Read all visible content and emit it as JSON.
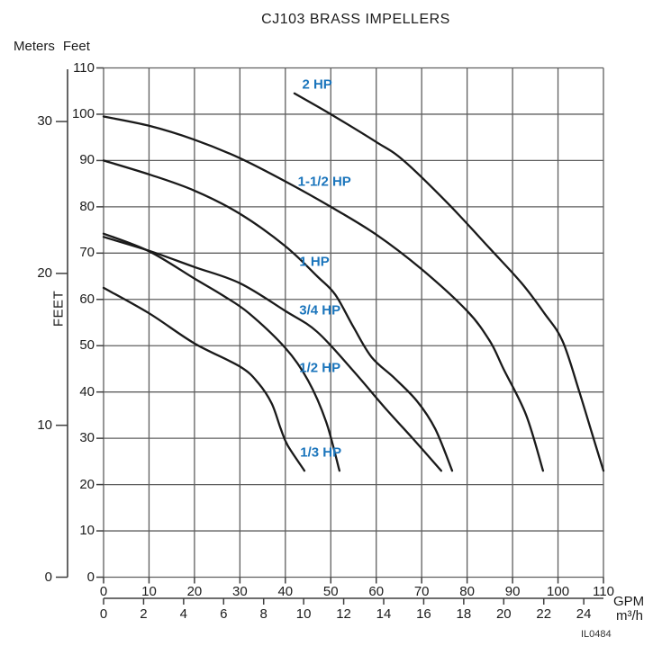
{
  "title": "CJ103 BRASS IMPELLERS",
  "figure_code": "IL0484",
  "colors": {
    "curve": "#1a1a1a",
    "grid": "#5f5f5f",
    "axis": "#3f3f3f",
    "label_blue": "#1b75bc",
    "text": "#1c1c1c"
  },
  "axes": {
    "left_header_meters": "Meters",
    "left_header_feet": "Feet",
    "feet_axis_title": "FEET",
    "feet_ticks": [
      0,
      10,
      20,
      30,
      40,
      50,
      60,
      70,
      80,
      90,
      100,
      110
    ],
    "meters_ticks": [
      0,
      10,
      20,
      30
    ],
    "gpm_ticks": [
      0,
      10,
      20,
      30,
      40,
      50,
      60,
      70,
      80,
      90,
      100,
      110
    ],
    "m3h_ticks": [
      0,
      2,
      4,
      6,
      8,
      10,
      12,
      14,
      16,
      18,
      20,
      22,
      24
    ],
    "gpm_unit": "GPM",
    "m3h_unit": "m³/h"
  },
  "chart_data": {
    "type": "line",
    "title": "CJ103 BRASS IMPELLERS",
    "xlabel": "GPM",
    "x2label": "m³/h",
    "ylabel": "FEET",
    "y2label": "Meters",
    "xlim": [
      0,
      110
    ],
    "ylim": [
      0,
      110
    ],
    "x2lim_m3h": [
      0,
      25
    ],
    "grid": true,
    "legend_position": "inline-labels",
    "series": [
      {
        "name": "2 HP",
        "label": {
          "x": 47,
          "y": 106.4
        },
        "points": [
          [
            42,
            104.5
          ],
          [
            50,
            100
          ],
          [
            60,
            94
          ],
          [
            66,
            90
          ],
          [
            76,
            80.5
          ],
          [
            85,
            71
          ],
          [
            92,
            63.5
          ],
          [
            97,
            57
          ],
          [
            101,
            51
          ],
          [
            104.7,
            40
          ],
          [
            107.5,
            31
          ],
          [
            110,
            23
          ]
        ]
      },
      {
        "name": "1-1/2 HP",
        "label": {
          "x": 48.6,
          "y": 85.4
        },
        "points": [
          [
            0,
            99.5
          ],
          [
            10,
            97.5
          ],
          [
            20,
            94.5
          ],
          [
            30,
            90.5
          ],
          [
            40,
            85.5
          ],
          [
            50,
            80
          ],
          [
            60,
            74
          ],
          [
            70,
            66.5
          ],
          [
            80,
            57.5
          ],
          [
            85,
            51
          ],
          [
            88,
            45
          ],
          [
            93,
            35
          ],
          [
            96.7,
            23
          ]
        ]
      },
      {
        "name": "1 HP",
        "label": {
          "x": 46.4,
          "y": 68.2
        },
        "points": [
          [
            0,
            90
          ],
          [
            10,
            87
          ],
          [
            20,
            83.5
          ],
          [
            30,
            78.5
          ],
          [
            40,
            71.5
          ],
          [
            47,
            65
          ],
          [
            51,
            61
          ],
          [
            55,
            54
          ],
          [
            59,
            47.5
          ],
          [
            64,
            43
          ],
          [
            69,
            38
          ],
          [
            73,
            32
          ],
          [
            76.7,
            23
          ]
        ]
      },
      {
        "name": "3/4 HP",
        "label": {
          "x": 47.6,
          "y": 57.6
        },
        "points": [
          [
            0,
            73.5
          ],
          [
            10,
            70.5
          ],
          [
            20,
            67
          ],
          [
            30,
            63.5
          ],
          [
            40,
            57.5
          ],
          [
            47,
            53
          ],
          [
            55,
            44.5
          ],
          [
            62,
            36.5
          ],
          [
            68,
            30
          ],
          [
            74.3,
            23
          ]
        ]
      },
      {
        "name": "1/2 HP",
        "label": {
          "x": 47.6,
          "y": 45.2
        },
        "points": [
          [
            0,
            74.2
          ],
          [
            10,
            70.4
          ],
          [
            20,
            64.5
          ],
          [
            26,
            61
          ],
          [
            32,
            57
          ],
          [
            40,
            49.5
          ],
          [
            45,
            42.5
          ],
          [
            49,
            33.5
          ],
          [
            51.9,
            23
          ]
        ]
      },
      {
        "name": "1/3 HP",
        "label": {
          "x": 47.8,
          "y": 26.9
        },
        "points": [
          [
            0,
            62.5
          ],
          [
            10,
            57
          ],
          [
            20,
            50.5
          ],
          [
            30,
            45.5
          ],
          [
            34,
            42
          ],
          [
            37,
            37.5
          ],
          [
            39,
            32
          ],
          [
            40.5,
            28.5
          ],
          [
            44.2,
            23
          ]
        ]
      }
    ]
  }
}
